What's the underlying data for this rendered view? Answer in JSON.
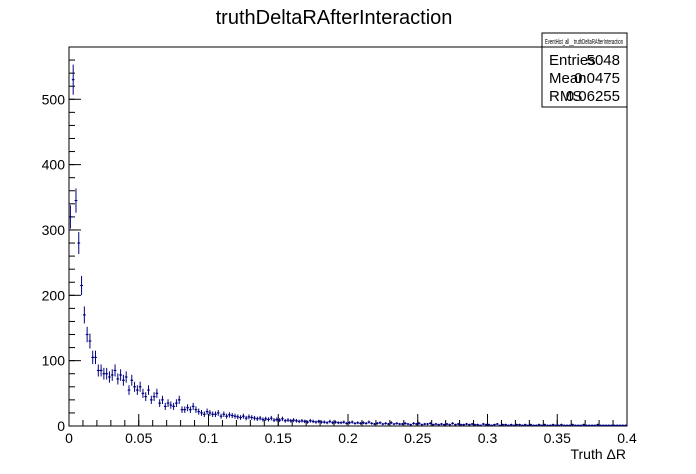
{
  "chart_data": {
    "type": "scatter",
    "title": "truthDeltaRAfterInteraction",
    "xlabel": "Truth ΔR",
    "ylabel": "",
    "xlim": [
      0,
      0.4
    ],
    "ylim": [
      0,
      580
    ],
    "x_ticks": [
      0,
      0.05,
      0.1,
      0.15,
      0.2,
      0.25,
      0.3,
      0.35,
      0.4
    ],
    "x_tick_labels": [
      "0",
      "0.05",
      "0.1",
      "0.15",
      "0.2",
      "0.25",
      "0.3",
      "0.35",
      "0.4"
    ],
    "y_ticks": [
      0,
      100,
      200,
      300,
      400,
      500
    ],
    "y_tick_labels": [
      "0",
      "100",
      "200",
      "300",
      "400",
      "500"
    ],
    "grid": false,
    "legend": "none",
    "bin_width": 0.002,
    "series": [
      {
        "style": "error-bars",
        "color": "#000080",
        "x": [
          0.001,
          0.003,
          0.005,
          0.007,
          0.009,
          0.011,
          0.013,
          0.015,
          0.017,
          0.019,
          0.021,
          0.023,
          0.025,
          0.027,
          0.029,
          0.031,
          0.033,
          0.035,
          0.037,
          0.039,
          0.041,
          0.043,
          0.045,
          0.047,
          0.049,
          0.051,
          0.053,
          0.055,
          0.057,
          0.059,
          0.061,
          0.063,
          0.065,
          0.067,
          0.069,
          0.071,
          0.073,
          0.075,
          0.077,
          0.079,
          0.081,
          0.083,
          0.085,
          0.087,
          0.089,
          0.091,
          0.093,
          0.095,
          0.097,
          0.099,
          0.101,
          0.103,
          0.105,
          0.107,
          0.109,
          0.111,
          0.113,
          0.115,
          0.117,
          0.119,
          0.121,
          0.123,
          0.125,
          0.127,
          0.129,
          0.131,
          0.133,
          0.135,
          0.137,
          0.139,
          0.141,
          0.143,
          0.145,
          0.147,
          0.149,
          0.151,
          0.153,
          0.155,
          0.157,
          0.159,
          0.161,
          0.163,
          0.165,
          0.167,
          0.169,
          0.171,
          0.173,
          0.175,
          0.177,
          0.179,
          0.181,
          0.183,
          0.185,
          0.187,
          0.189,
          0.191,
          0.193,
          0.195,
          0.197,
          0.199,
          0.201,
          0.203,
          0.205,
          0.207,
          0.209,
          0.211,
          0.213,
          0.215,
          0.217,
          0.219,
          0.221,
          0.223,
          0.225,
          0.227,
          0.229,
          0.231,
          0.233,
          0.235,
          0.237,
          0.239,
          0.241,
          0.243,
          0.245,
          0.247,
          0.249,
          0.251,
          0.253,
          0.255,
          0.257,
          0.259,
          0.261,
          0.263,
          0.265,
          0.267,
          0.269,
          0.271,
          0.273,
          0.275,
          0.277,
          0.279,
          0.281,
          0.283,
          0.285,
          0.287,
          0.289,
          0.291,
          0.293,
          0.295,
          0.297,
          0.299,
          0.301,
          0.303,
          0.305,
          0.307,
          0.309,
          0.311,
          0.313,
          0.315,
          0.317,
          0.319,
          0.321,
          0.323,
          0.325,
          0.327,
          0.329,
          0.331,
          0.333,
          0.335,
          0.337,
          0.339,
          0.341,
          0.343,
          0.345,
          0.347,
          0.349,
          0.351,
          0.353,
          0.355,
          0.357,
          0.359,
          0.361,
          0.363,
          0.365,
          0.367,
          0.369,
          0.371,
          0.373,
          0.375,
          0.377,
          0.379,
          0.381,
          0.383,
          0.385,
          0.387,
          0.389,
          0.391,
          0.393,
          0.395,
          0.397,
          0.399
        ],
        "y": [
          320,
          530,
          345,
          280,
          215,
          170,
          140,
          130,
          105,
          105,
          85,
          85,
          80,
          80,
          75,
          78,
          85,
          72,
          78,
          70,
          75,
          55,
          70,
          60,
          55,
          60,
          50,
          45,
          55,
          40,
          45,
          50,
          35,
          40,
          30,
          35,
          32,
          30,
          35,
          40,
          25,
          25,
          28,
          25,
          30,
          25,
          22,
          20,
          18,
          22,
          20,
          18,
          18,
          20,
          15,
          18,
          15,
          17,
          16,
          15,
          14,
          13,
          15,
          12,
          14,
          13,
          12,
          11,
          12,
          10,
          11,
          10,
          12,
          9,
          10,
          9,
          11,
          8,
          9,
          8,
          9,
          8,
          7,
          8,
          7,
          6,
          8,
          7,
          6,
          7,
          6,
          6,
          5,
          7,
          5,
          6,
          5,
          5,
          6,
          4,
          5,
          6,
          4,
          5,
          4,
          5,
          4,
          6,
          4,
          3,
          4,
          5,
          3,
          4,
          3,
          5,
          3,
          4,
          3,
          3,
          4,
          3,
          2,
          4,
          3,
          4,
          2,
          3,
          3,
          4,
          2,
          3,
          2,
          3,
          2,
          3,
          2,
          4,
          2,
          3,
          2,
          2,
          3,
          2,
          3,
          2,
          2,
          1,
          3,
          2,
          2,
          1,
          2,
          3,
          1,
          2,
          2,
          1,
          2,
          1,
          2,
          2,
          1,
          2,
          1,
          2,
          1,
          1,
          2,
          1,
          2,
          1,
          1,
          2,
          1,
          1,
          2,
          1,
          1,
          1,
          2,
          1,
          1,
          1,
          2,
          1,
          1,
          1,
          1,
          2,
          1,
          1,
          1,
          1,
          1,
          1,
          1,
          1,
          1,
          1
        ]
      }
    ]
  },
  "stats_box": {
    "name": "EventHist_all__truthDeltaRAfterInteraction",
    "rows": [
      {
        "label": "Entries",
        "value": "5048"
      },
      {
        "label": "Mean",
        "value": "0.0475"
      },
      {
        "label": "RMS",
        "value": "0.06255"
      }
    ]
  }
}
